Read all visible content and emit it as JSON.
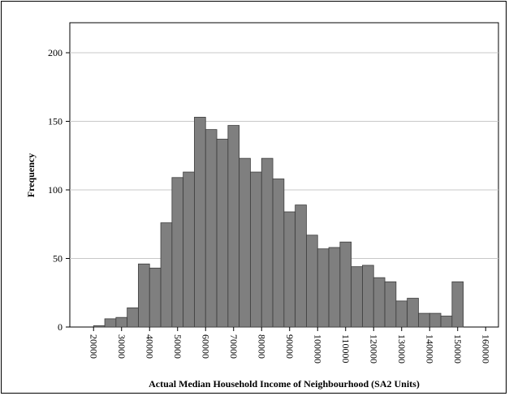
{
  "chart_data": {
    "type": "bar",
    "title": "",
    "xlabel": "Actual Median Household Income of Neighbourhood (SA2 Units)",
    "ylabel": "Frequency",
    "ylim": [
      0,
      220
    ],
    "xlim": [
      15000,
      165000
    ],
    "grid": true,
    "colors": {
      "bar_fill": "#7f7f7f",
      "bar_stroke": "#3c3c3c",
      "grid": "#c8c8c8"
    },
    "y_ticks": [
      0,
      50,
      100,
      150,
      200
    ],
    "x_ticks": [
      20000,
      30000,
      40000,
      50000,
      60000,
      70000,
      80000,
      90000,
      100000,
      110000,
      120000,
      130000,
      140000,
      150000,
      160000
    ],
    "bin_width": 4000,
    "bin_starts": [
      20000,
      24000,
      28000,
      32000,
      36000,
      40000,
      44000,
      48000,
      52000,
      56000,
      60000,
      64000,
      68000,
      72000,
      76000,
      80000,
      84000,
      88000,
      92000,
      96000,
      100000,
      104000,
      108000,
      112000,
      116000,
      120000,
      124000,
      128000,
      132000,
      136000,
      140000,
      144000,
      148000
    ],
    "values": [
      1,
      6,
      7,
      14,
      46,
      43,
      76,
      109,
      113,
      153,
      144,
      137,
      147,
      123,
      113,
      123,
      108,
      84,
      89,
      67,
      57,
      58,
      62,
      44,
      45,
      36,
      33,
      19,
      21,
      10,
      10,
      8,
      33
    ]
  }
}
